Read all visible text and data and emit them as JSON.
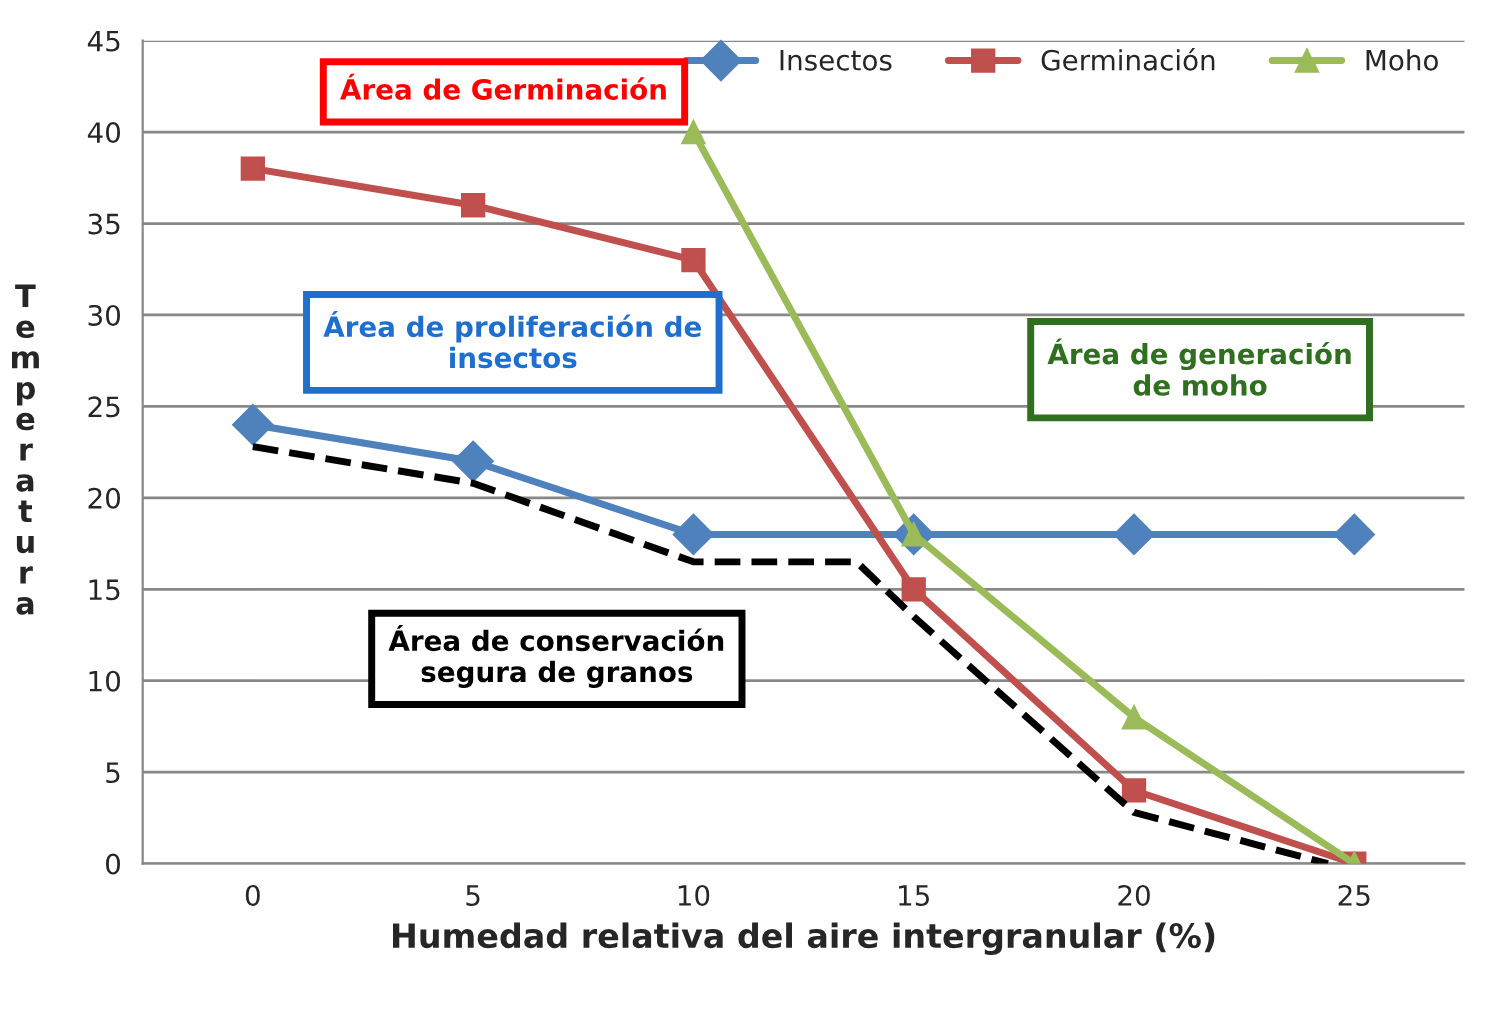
{
  "chart_data": {
    "type": "line",
    "xlabel": "Humedad relativa del aire intergranular (%)",
    "ylabel": "Temperatura",
    "xlim": [
      -2.5,
      27.5
    ],
    "xticks": [
      0,
      5,
      10,
      15,
      20,
      25
    ],
    "ylim": [
      0,
      45
    ],
    "yticks": [
      0,
      5,
      10,
      15,
      20,
      25,
      30,
      35,
      40,
      45
    ],
    "grid": "y",
    "legend": "top right",
    "series": [
      {
        "name": "Insectos",
        "color": "#4f81bd",
        "marker": "diamond",
        "x": [
          0,
          5,
          10,
          15,
          20,
          25
        ],
        "values": [
          24,
          22,
          18,
          18,
          18,
          18
        ]
      },
      {
        "name": "Germinación",
        "color": "#c0504d",
        "marker": "square",
        "x": [
          0,
          5,
          10,
          15,
          20,
          25
        ],
        "values": [
          38,
          36,
          33,
          15,
          4,
          0
        ]
      },
      {
        "name": "Moho",
        "color": "#9bbb59",
        "marker": "triangle",
        "x": [
          10,
          15,
          20,
          25
        ],
        "values": [
          40,
          18,
          8,
          0
        ]
      },
      {
        "color": "#000000",
        "line_style": "dashed",
        "x": [
          0,
          5,
          10,
          13.7,
          15,
          20,
          24.4
        ],
        "values": [
          22.8,
          20.8,
          16.5,
          16.5,
          13.5,
          2.8,
          0
        ]
      }
    ],
    "annotations": [
      "Área de Germinación",
      "Área de proliferación de\ninsectos",
      "Área de generación\nde moho",
      "Área de conservación\nsegura de granos"
    ]
  }
}
